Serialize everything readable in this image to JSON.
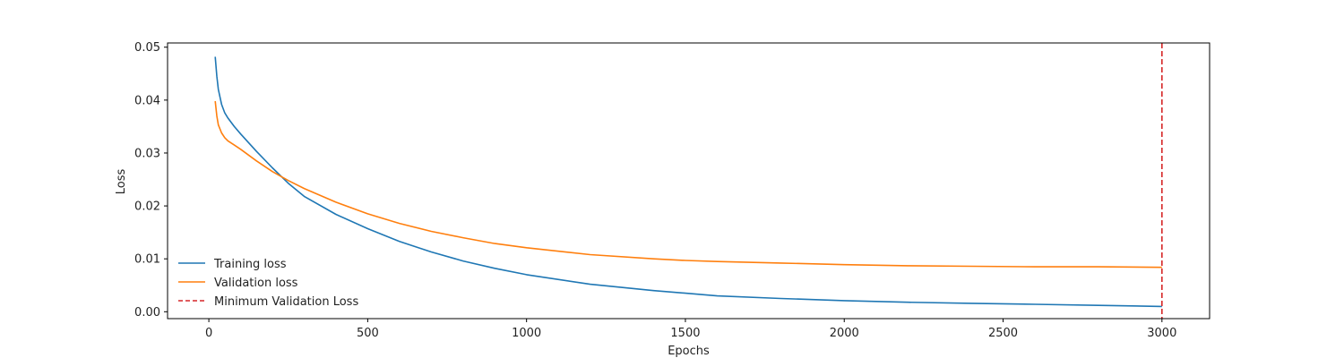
{
  "chart_data": {
    "type": "line",
    "title": "",
    "xlabel": "Epochs",
    "ylabel": "Loss",
    "xlim": [
      -130,
      3150
    ],
    "ylim": [
      -0.0013,
      0.0508
    ],
    "xticks": [
      0,
      500,
      1000,
      1500,
      2000,
      2500,
      3000
    ],
    "yticks": [
      0.0,
      0.01,
      0.02,
      0.03,
      0.04,
      0.05
    ],
    "xtick_labels": [
      "0",
      "500",
      "1000",
      "1500",
      "2000",
      "2500",
      "3000"
    ],
    "ytick_labels": [
      "0.00",
      "0.01",
      "0.02",
      "0.03",
      "0.04",
      "0.05"
    ],
    "grid": false,
    "legend_position": "lower-left",
    "series": [
      {
        "name": "Training loss",
        "color": "#1f77b4",
        "style": "solid",
        "x": [
          20,
          25,
          30,
          40,
          50,
          60,
          80,
          100,
          150,
          200,
          250,
          300,
          400,
          500,
          600,
          700,
          800,
          900,
          1000,
          1200,
          1400,
          1500,
          1600,
          1800,
          2000,
          2200,
          2400,
          2600,
          2800,
          3000
        ],
        "y": [
          0.0482,
          0.0445,
          0.042,
          0.0392,
          0.0376,
          0.0366,
          0.035,
          0.0336,
          0.0303,
          0.0272,
          0.0243,
          0.0218,
          0.0184,
          0.0157,
          0.0133,
          0.0113,
          0.0096,
          0.0082,
          0.007,
          0.0052,
          0.004,
          0.0035,
          0.003,
          0.0025,
          0.0021,
          0.0018,
          0.0016,
          0.0014,
          0.0012,
          0.001
        ]
      },
      {
        "name": "Validation loss",
        "color": "#ff7f0e",
        "style": "solid",
        "x": [
          20,
          25,
          30,
          40,
          50,
          60,
          80,
          100,
          150,
          200,
          250,
          300,
          400,
          500,
          600,
          700,
          800,
          900,
          1000,
          1200,
          1400,
          1500,
          1600,
          1800,
          2000,
          2200,
          2400,
          2600,
          2800,
          3000
        ],
        "y": [
          0.0398,
          0.037,
          0.0353,
          0.0338,
          0.0329,
          0.0323,
          0.0315,
          0.0307,
          0.0285,
          0.0265,
          0.0248,
          0.0233,
          0.0207,
          0.0185,
          0.0167,
          0.0152,
          0.014,
          0.0129,
          0.0121,
          0.0108,
          0.01,
          0.0097,
          0.0095,
          0.0092,
          0.0089,
          0.0087,
          0.0086,
          0.0085,
          0.0085,
          0.0084
        ]
      }
    ],
    "vlines": [
      {
        "name": "Minimum Validation Loss",
        "x": 3000,
        "color": "#d62728",
        "style": "dashed"
      }
    ]
  }
}
